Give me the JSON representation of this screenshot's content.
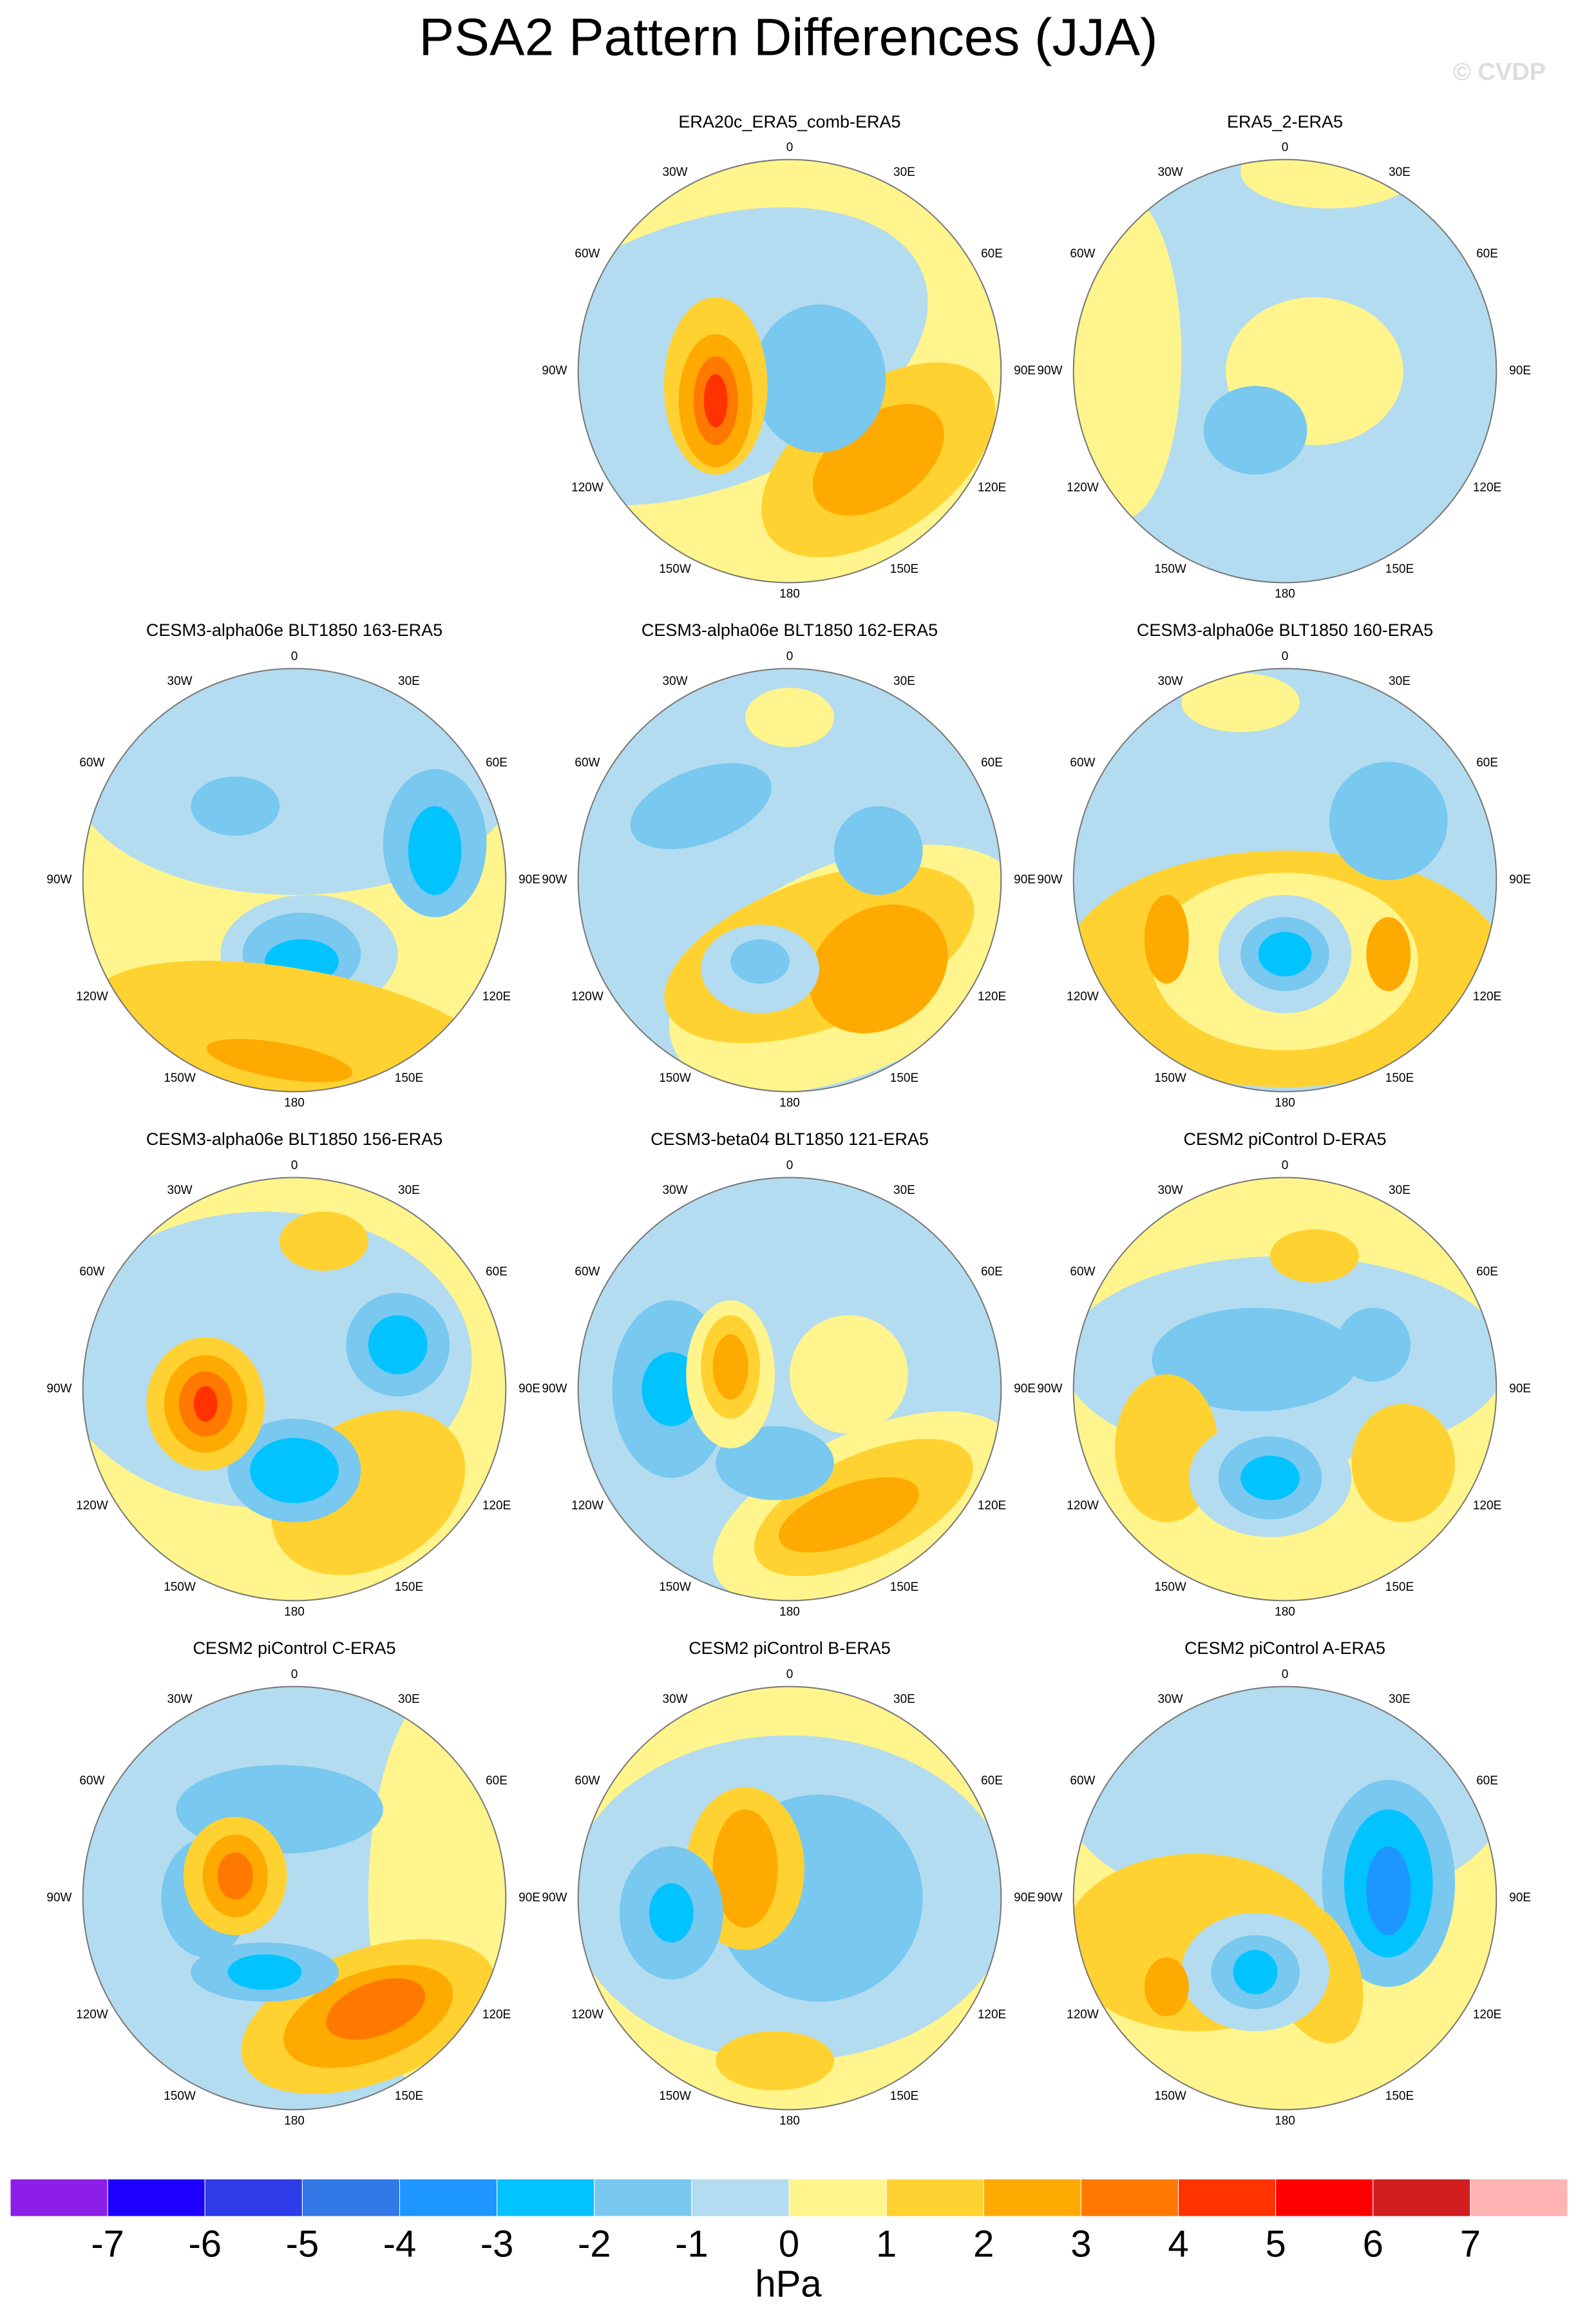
{
  "title": "PSA2 Pattern Differences (JJA)",
  "watermark": "© CVDP",
  "lon_labels": [
    "0",
    "30E",
    "60E",
    "90E",
    "120E",
    "150E",
    "180",
    "150W",
    "120W",
    "90W",
    "60W",
    "30W"
  ],
  "panels": [
    {
      "title": "ERA20c_ERA5_comb-ERA5"
    },
    {
      "title": "ERA5_2-ERA5"
    },
    {
      "title": "CESM3-alpha06e BLT1850 163-ERA5"
    },
    {
      "title": "CESM3-alpha06e BLT1850 162-ERA5"
    },
    {
      "title": "CESM3-alpha06e BLT1850 160-ERA5"
    },
    {
      "title": "CESM3-alpha06e BLT1850 156-ERA5"
    },
    {
      "title": "CESM3-beta04 BLT1850 121-ERA5"
    },
    {
      "title": "CESM2 piControl D-ERA5"
    },
    {
      "title": "CESM2 piControl C-ERA5"
    },
    {
      "title": "CESM2 piControl B-ERA5"
    },
    {
      "title": "CESM2 piControl A-ERA5"
    }
  ],
  "colorbar": {
    "colors": [
      "#8c1ee8",
      "#1e00ff",
      "#2d3ce6",
      "#3278e6",
      "#1e96ff",
      "#00c3ff",
      "#78c8f0",
      "#b4dcf0",
      "#fff58c",
      "#ffd232",
      "#ffaa00",
      "#ff7800",
      "#ff3200",
      "#ff0000",
      "#d21e1e",
      "#ffb4b4"
    ],
    "levels": [
      -7,
      -6,
      -5,
      -4,
      -3,
      -2,
      -1,
      0,
      1,
      2,
      3,
      4,
      5,
      6,
      7
    ],
    "label": "hPa"
  }
}
